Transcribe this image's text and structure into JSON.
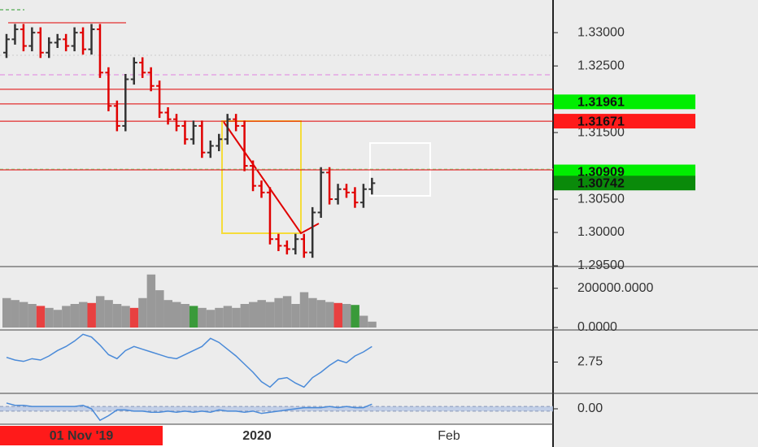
{
  "chart_data": [
    {
      "type": "ohlc",
      "up_color": "#333333",
      "down_color": "#e00000",
      "ylim": [
        1.295,
        1.3349
      ],
      "yticks": [
        {
          "value": 1.295,
          "label": "1.29500"
        },
        {
          "value": 1.3,
          "label": "1.30000"
        },
        {
          "value": 1.305,
          "label": "1.30500"
        },
        {
          "value": 1.315,
          "label": "1.31500"
        },
        {
          "value": 1.325,
          "label": "1.32500"
        },
        {
          "value": 1.33,
          "label": "1.33000"
        }
      ],
      "open": [
        1.327,
        1.329,
        1.3305,
        1.328,
        1.33,
        1.327,
        1.3285,
        1.329,
        1.328,
        1.33,
        1.3275,
        1.3305,
        1.324,
        1.319,
        1.316,
        1.323,
        1.3255,
        1.324,
        1.322,
        1.318,
        1.317,
        1.316,
        1.314,
        1.316,
        1.312,
        1.313,
        1.314,
        1.317,
        1.316,
        1.31,
        1.307,
        1.306,
        1.299,
        1.298,
        1.2975,
        1.299,
        1.297,
        1.303,
        1.309,
        1.305,
        1.3065,
        1.306,
        1.3045,
        1.3065
      ],
      "high": [
        1.3298,
        1.3313,
        1.3313,
        1.3308,
        1.3308,
        1.3293,
        1.3298,
        1.3298,
        1.3308,
        1.3308,
        1.3313,
        1.3313,
        1.3248,
        1.3198,
        1.3238,
        1.3263,
        1.3263,
        1.3248,
        1.3228,
        1.3188,
        1.3178,
        1.3168,
        1.3168,
        1.3168,
        1.3138,
        1.3148,
        1.3178,
        1.3178,
        1.3168,
        1.3108,
        1.3078,
        1.3068,
        1.2998,
        1.2988,
        1.2998,
        1.2998,
        1.3038,
        1.3098,
        1.3098,
        1.3073,
        1.3073,
        1.3068,
        1.3073,
        1.3082
      ],
      "low": [
        1.3262,
        1.3282,
        1.3272,
        1.3272,
        1.3262,
        1.3262,
        1.3277,
        1.3272,
        1.3272,
        1.3267,
        1.3267,
        1.3232,
        1.3182,
        1.3152,
        1.3152,
        1.3222,
        1.3232,
        1.3212,
        1.3172,
        1.3162,
        1.3152,
        1.3132,
        1.3132,
        1.3112,
        1.3112,
        1.3122,
        1.3132,
        1.3152,
        1.3092,
        1.3062,
        1.3052,
        1.2982,
        1.2972,
        1.2967,
        1.2967,
        1.2962,
        1.2962,
        1.3022,
        1.3042,
        1.3042,
        1.3052,
        1.3037,
        1.3037,
        1.3057
      ],
      "close": [
        1.329,
        1.3305,
        1.328,
        1.33,
        1.327,
        1.3285,
        1.329,
        1.328,
        1.33,
        1.3275,
        1.3305,
        1.324,
        1.319,
        1.316,
        1.323,
        1.3255,
        1.324,
        1.322,
        1.318,
        1.317,
        1.316,
        1.314,
        1.316,
        1.312,
        1.313,
        1.314,
        1.317,
        1.316,
        1.31,
        1.307,
        1.306,
        1.299,
        1.298,
        1.2975,
        1.299,
        1.297,
        1.303,
        1.309,
        1.305,
        1.3065,
        1.306,
        1.3045,
        1.3065,
        1.3074
      ],
      "price_lines": [
        1.3215,
        1.3193,
        1.3167,
        1.3094
      ],
      "price_tags": [
        {
          "value": 1.31961,
          "color": "#00ee00"
        },
        {
          "value": 1.31671,
          "color": "#ff1a1a"
        },
        {
          "value": 1.30909,
          "color": "#00ee00"
        },
        {
          "value": 1.30742,
          "color": "#0a8a0a"
        }
      ],
      "xticklabels": [
        "01 Nov '19",
        "2020",
        "Feb"
      ]
    },
    {
      "type": "bar",
      "ylim": [
        0,
        298000
      ],
      "yticks": [
        {
          "value": 200000,
          "label": "200000.0000"
        },
        {
          "value": 0,
          "label": "0.0000"
        }
      ],
      "values": [
        150000,
        140000,
        130000,
        120000,
        110000,
        100000,
        90000,
        110000,
        120000,
        130000,
        125000,
        160000,
        140000,
        120000,
        110000,
        100000,
        150000,
        270000,
        190000,
        140000,
        130000,
        120000,
        110000,
        100000,
        90000,
        100000,
        110000,
        100000,
        120000,
        130000,
        140000,
        130000,
        150000,
        160000,
        120000,
        180000,
        150000,
        140000,
        130000,
        125000,
        120000,
        115000,
        60000,
        30000
      ],
      "colors": [
        "#999999",
        "#999999",
        "#999999",
        "#999999",
        "#e84040",
        "#999999",
        "#999999",
        "#999999",
        "#999999",
        "#999999",
        "#e84040",
        "#999999",
        "#999999",
        "#999999",
        "#999999",
        "#e84040",
        "#999999",
        "#999999",
        "#999999",
        "#999999",
        "#999999",
        "#999999",
        "#3a9a3a",
        "#999999",
        "#999999",
        "#999999",
        "#999999",
        "#999999",
        "#999999",
        "#999999",
        "#999999",
        "#999999",
        "#999999",
        "#999999",
        "#999999",
        "#999999",
        "#999999",
        "#999999",
        "#999999",
        "#e84040",
        "#999999",
        "#3a9a3a",
        "#999999",
        "#999999"
      ]
    },
    {
      "type": "line",
      "color": "#4a8ad8",
      "ylim": [
        0.5,
        5.0
      ],
      "yticks": [
        2.75
      ],
      "values": [
        3.1,
        2.9,
        2.8,
        3.0,
        2.9,
        3.2,
        3.6,
        3.9,
        4.3,
        4.8,
        4.6,
        4.0,
        3.3,
        3.0,
        3.6,
        3.9,
        3.7,
        3.5,
        3.3,
        3.1,
        3.0,
        3.3,
        3.6,
        3.9,
        4.5,
        4.2,
        3.7,
        3.2,
        2.6,
        2.0,
        1.3,
        0.9,
        1.5,
        1.6,
        1.2,
        0.9,
        1.6,
        2.0,
        2.5,
        2.9,
        2.7,
        3.2,
        3.5,
        3.9
      ]
    },
    {
      "type": "line",
      "color": "#4a8ad8",
      "ylim": [
        -0.6,
        0.6
      ],
      "band": [
        -0.1,
        0.1
      ],
      "yticks": [
        {
          "value": 0,
          "label": "0.00"
        }
      ],
      "values": [
        0.25,
        0.15,
        0.15,
        0.1,
        0.1,
        0.1,
        0.1,
        0.1,
        0.1,
        0.15,
        0.0,
        -0.5,
        -0.3,
        -0.05,
        -0.05,
        -0.1,
        -0.1,
        -0.15,
        -0.15,
        -0.1,
        -0.15,
        -0.1,
        -0.15,
        -0.1,
        -0.15,
        -0.05,
        -0.1,
        -0.1,
        -0.15,
        -0.1,
        -0.2,
        -0.15,
        -0.1,
        -0.05,
        0.0,
        0.05,
        0.05,
        0.05,
        0.1,
        0.05,
        0.1,
        0.05,
        0.05,
        0.2
      ]
    }
  ]
}
